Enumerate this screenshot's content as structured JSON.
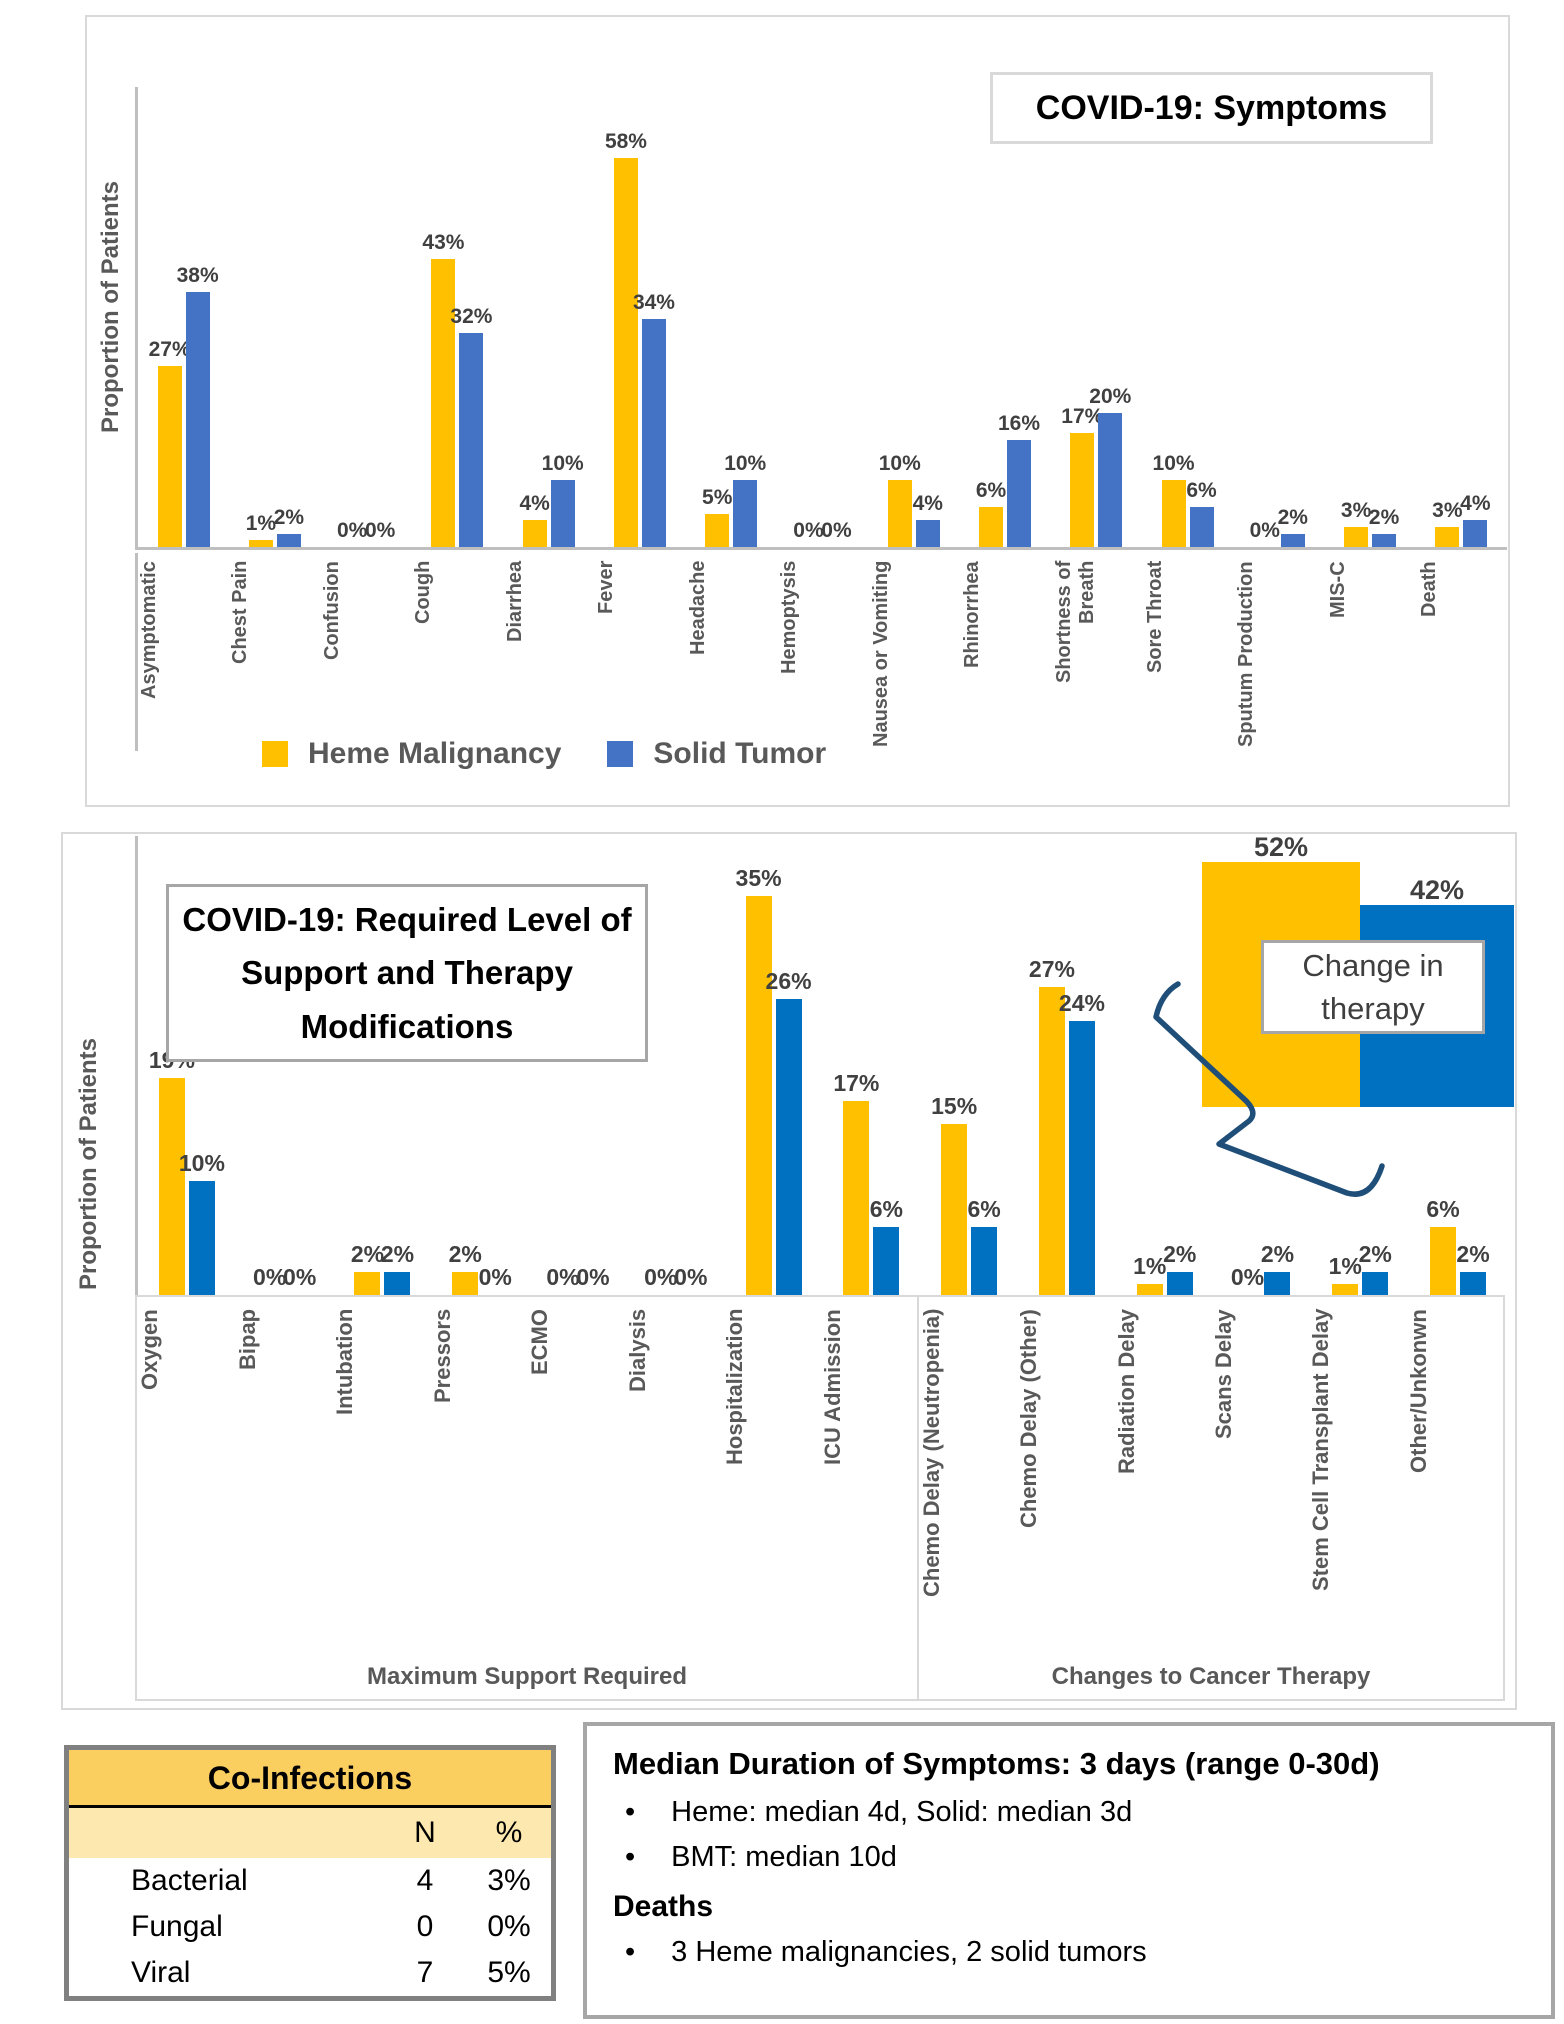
{
  "chart_data": [
    {
      "type": "bar",
      "title": "COVID-19: Symptoms",
      "ylabel": "Proportion of Patients",
      "categories": [
        "Asymptomatic",
        "Chest Pain",
        "Confusion",
        "Cough",
        "Diarrhea",
        "Fever",
        "Headache",
        "Hemoptysis",
        "Nausea or Vomiting",
        "Rhinorrhea",
        "Shortness of Breath",
        "Sore Throat",
        "Sputum Production",
        "MIS-C",
        "Death"
      ],
      "series": [
        {
          "name": "Heme Malignancy",
          "values": [
            27,
            1,
            0,
            43,
            4,
            58,
            5,
            0,
            10,
            6,
            17,
            10,
            0,
            3,
            3
          ]
        },
        {
          "name": "Solid Tumor",
          "values": [
            38,
            2,
            0,
            32,
            10,
            34,
            10,
            0,
            4,
            16,
            20,
            6,
            2,
            2,
            4
          ]
        }
      ],
      "colors": [
        "#FFC000",
        "#4472C4"
      ],
      "value_label_format": "percent",
      "ylim": [
        0,
        60
      ],
      "grid": false,
      "legend_position": "bottom-left"
    },
    {
      "type": "bar",
      "title": "COVID-19: Required Level of Support and Therapy Modifications",
      "ylabel": "Proportion of Patients",
      "categories": [
        "Oxygen",
        "Bipap",
        "Intubation",
        "Pressors",
        "ECMO",
        "Dialysis",
        "Hospitalization",
        "ICU Admission",
        "Chemo Delay (Neutropenia)",
        "Chemo Delay (Other)",
        "Radiation Delay",
        "Scans Delay",
        "Stem Cell Transplant Delay",
        "Other/Unkonwn"
      ],
      "series": [
        {
          "name": "Heme Malignancy",
          "values": [
            19,
            0,
            2,
            2,
            0,
            0,
            35,
            17,
            15,
            27,
            1,
            0,
            1,
            6
          ]
        },
        {
          "name": "Solid Tumor",
          "values": [
            10,
            0,
            2,
            0,
            0,
            0,
            26,
            6,
            6,
            24,
            2,
            2,
            2,
            2
          ]
        }
      ],
      "colors": [
        "#FFC000",
        "#0070C0"
      ],
      "groups": [
        {
          "label": "Maximum Support Required",
          "span": 8
        },
        {
          "label": "Changes to Cancer Therapy",
          "span": 6
        }
      ],
      "annotation": {
        "label": "Change in therapy",
        "series": [
          {
            "name": "Heme Malignancy",
            "value": 52
          },
          {
            "name": "Solid Tumor",
            "value": 42
          }
        ],
        "brace_color": "#1F4E79"
      },
      "value_label_format": "percent",
      "ylim": [
        0,
        40
      ],
      "grid": false,
      "legend_position": "none"
    }
  ],
  "co_infections": {
    "title": "Co-Infections",
    "columns": [
      "",
      "N",
      "%"
    ],
    "rows": [
      {
        "label": "Bacterial",
        "n": "4",
        "pct": "3%"
      },
      {
        "label": "Fungal",
        "n": "0",
        "pct": "0%"
      },
      {
        "label": "Viral",
        "n": "7",
        "pct": "5%"
      }
    ],
    "header_bg": "#FBCE60",
    "subheader_bg": "#FDE8B0"
  },
  "notes": {
    "heading1": "Median Duration of Symptoms: 3 days (range 0-30d)",
    "bullets1": [
      "Heme: median 4d, Solid: median 3d",
      "BMT: median 10d"
    ],
    "heading2": "Deaths",
    "bullets2": [
      "3 Heme malignancies, 2 solid tumors"
    ],
    "bullet_char": "•"
  }
}
